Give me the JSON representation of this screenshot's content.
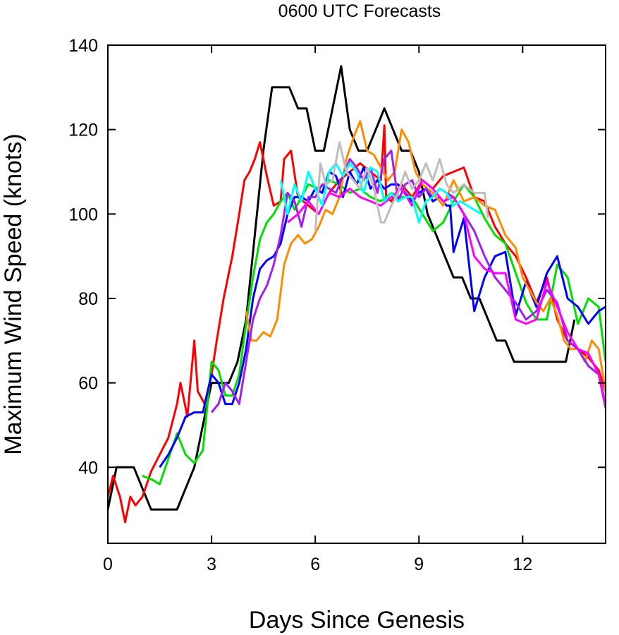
{
  "chart_data": {
    "type": "line",
    "title": "0600 UTC Forecasts",
    "xlabel": "Days Since Genesis",
    "ylabel": "Maximum Wind Speed (knots)",
    "xlim": [
      0,
      14.4
    ],
    "ylim": [
      22,
      140
    ],
    "x_ticks": [
      0,
      3,
      6,
      9,
      12
    ],
    "y_ticks": [
      40,
      60,
      80,
      100,
      120,
      140
    ],
    "grid": false,
    "series": [
      {
        "color": "#000000",
        "x": [
          0,
          0.25,
          0.5,
          0.75,
          1.0,
          1.25,
          1.5,
          1.75,
          2.0,
          2.25,
          2.5,
          2.75,
          3.0,
          3.25,
          3.5,
          3.75,
          4.0,
          4.25,
          4.5,
          4.75,
          5.0,
          5.25,
          5.5,
          5.75,
          6.0,
          6.25,
          6.5,
          6.75,
          7.0,
          7.25,
          7.5,
          7.75,
          8.0,
          8.25,
          8.5,
          8.75,
          9.0,
          9.25,
          9.5,
          9.75,
          10.0,
          10.25,
          10.5,
          10.75,
          11.0,
          11.25,
          11.5,
          11.75,
          12.0,
          12.25,
          12.5,
          12.75,
          13.0,
          13.25,
          13.5
        ],
        "y": [
          30,
          40,
          40,
          40,
          35,
          30,
          30,
          30,
          30,
          35,
          40,
          50,
          60,
          60,
          60,
          65,
          75,
          95,
          115,
          130,
          130,
          130,
          125,
          125,
          115,
          115,
          125,
          135,
          120,
          115,
          115,
          120,
          125,
          120,
          115,
          115,
          110,
          100,
          95,
          90,
          85,
          85,
          80,
          80,
          75,
          70,
          70,
          65,
          65,
          65,
          65,
          65,
          65,
          65,
          75
        ]
      },
      {
        "color": "#ff0000",
        "x": [
          0,
          0.15,
          0.35,
          0.5,
          0.65,
          0.8,
          1.0,
          1.25,
          1.5,
          1.75,
          2.0,
          2.1,
          2.3,
          2.5,
          2.6,
          2.8,
          3.0,
          3.15,
          3.35,
          3.6,
          3.8,
          3.95,
          4.1,
          4.25,
          4.4,
          4.6,
          4.8,
          5.0,
          5.1,
          5.3,
          5.5,
          5.8,
          6.1,
          6.4,
          6.7,
          7.0,
          7.3,
          7.6,
          7.9,
          8.0,
          8.05,
          8.2,
          8.5,
          8.8,
          9.1,
          9.4,
          9.7,
          10.0,
          10.3,
          10.6,
          10.9,
          11.2,
          11.5,
          11.8,
          12.1,
          12.4,
          12.7,
          13.0,
          13.3,
          13.6,
          13.9,
          14.2,
          14.4
        ],
        "y": [
          33,
          38,
          33,
          27,
          33,
          31,
          33,
          39,
          43,
          47,
          55,
          60,
          52,
          70,
          58,
          55,
          62,
          70,
          80,
          90,
          100,
          108,
          110,
          113,
          117,
          109,
          102,
          103,
          113,
          115,
          104,
          102,
          100,
          105,
          108,
          110,
          112,
          110,
          108,
          121,
          104,
          103,
          107,
          104,
          108,
          106,
          109,
          110,
          111,
          104,
          103,
          97,
          93,
          90,
          85,
          79,
          85,
          75,
          70,
          68,
          66,
          63,
          58
        ]
      },
      {
        "color": "#00e000",
        "x": [
          1.0,
          1.3,
          1.5,
          1.75,
          2.0,
          2.25,
          2.5,
          2.75,
          3.0,
          3.2,
          3.4,
          3.6,
          3.8,
          4.0,
          4.2,
          4.4,
          4.6,
          4.8,
          5.0,
          5.2,
          5.4,
          5.6,
          5.8,
          6.1,
          6.4,
          6.7,
          7.0,
          7.3,
          7.6,
          7.9,
          8.2,
          8.5,
          8.8,
          9.1,
          9.4,
          9.7,
          10.0,
          10.3,
          10.6,
          10.9,
          11.2,
          11.5,
          11.8,
          12.1,
          12.4,
          12.7,
          13.0,
          13.3,
          13.6,
          13.9,
          14.2,
          14.4
        ],
        "y": [
          38,
          37,
          36,
          42,
          48,
          43,
          41,
          44,
          65,
          63,
          57,
          57,
          62,
          74,
          85,
          94,
          98,
          100,
          103,
          105,
          101,
          104,
          107,
          106,
          108,
          107,
          105,
          106,
          104,
          103,
          105,
          104,
          104,
          100,
          96,
          98,
          103,
          107,
          104,
          99,
          95,
          93,
          86,
          79,
          75,
          75,
          88,
          85,
          74,
          80,
          78,
          65
        ]
      },
      {
        "color": "#0000ff",
        "x": [
          1.5,
          1.75,
          2.0,
          2.25,
          2.5,
          2.75,
          3.0,
          3.2,
          3.4,
          3.6,
          3.8,
          4.0,
          4.2,
          4.4,
          4.6,
          4.8,
          5.0,
          5.2,
          5.4,
          5.6,
          5.8,
          6.0,
          6.2,
          6.4,
          6.6,
          6.8,
          7.0,
          7.2,
          7.4,
          7.6,
          7.8,
          8.0,
          8.2,
          8.4,
          8.6,
          8.8,
          9.0,
          9.2,
          9.4,
          9.6,
          9.8,
          9.9,
          10.0,
          10.3,
          10.6,
          10.9,
          11.2,
          11.5,
          11.8,
          12.1,
          12.4,
          12.7,
          13.0,
          13.3,
          13.6,
          13.9,
          14.2,
          14.4
        ],
        "y": [
          40,
          43,
          47,
          52,
          53,
          53,
          62,
          60,
          55,
          55,
          60,
          68,
          80,
          87,
          89,
          90,
          93,
          100,
          104,
          104,
          103,
          106,
          105,
          110,
          109,
          104,
          110,
          107,
          111,
          106,
          108,
          106,
          107,
          107,
          105,
          103,
          105,
          106,
          103,
          104,
          102,
          102,
          91,
          99,
          77,
          85,
          90,
          91,
          76,
          84,
          78,
          86,
          90,
          80,
          78,
          74,
          77,
          78
        ]
      },
      {
        "color": "#ff8c00",
        "x": [
          4.0,
          4.15,
          4.3,
          4.5,
          4.7,
          4.9,
          5.1,
          5.3,
          5.5,
          5.7,
          5.9,
          6.1,
          6.3,
          6.5,
          6.7,
          6.9,
          7.1,
          7.3,
          7.5,
          7.7,
          7.9,
          8.1,
          8.3,
          8.5,
          8.7,
          8.9,
          9.1,
          9.4,
          9.7,
          10.0,
          10.3,
          10.6,
          10.9,
          11.2,
          11.5,
          11.8,
          12.0,
          12.2,
          12.4,
          12.6,
          12.8,
          13.0,
          13.2,
          13.4,
          13.6,
          13.8,
          14.0,
          14.2,
          14.4
        ],
        "y": [
          77,
          70,
          70,
          72,
          71,
          75,
          88,
          93,
          95,
          93,
          94,
          97,
          101,
          100,
          104,
          113,
          118,
          122,
          115,
          114,
          111,
          108,
          110,
          120,
          117,
          110,
          107,
          105,
          102,
          108,
          103,
          104,
          102,
          101,
          95,
          92,
          85,
          82,
          79,
          77,
          80,
          76,
          70,
          68,
          68,
          65,
          70,
          68,
          58
        ]
      },
      {
        "color": "#a020f0",
        "x": [
          3.0,
          3.2,
          3.4,
          3.6,
          3.8,
          4.0,
          4.2,
          4.4,
          4.6,
          4.8,
          5.0,
          5.2,
          5.4,
          5.6,
          5.8,
          6.0,
          6.2,
          6.4,
          6.6,
          6.8,
          7.0,
          7.2,
          7.4,
          7.6,
          7.8,
          8.0,
          8.2,
          8.4,
          8.6,
          8.8,
          9.0,
          9.2,
          9.4,
          9.6,
          9.8,
          10.0,
          10.3,
          10.6,
          10.9,
          11.2,
          11.5,
          11.8,
          12.1,
          12.4,
          12.7,
          13.0,
          13.3,
          13.6,
          13.9,
          14.2,
          14.4
        ],
        "y": [
          53,
          55,
          60,
          58,
          55,
          65,
          75,
          80,
          83,
          88,
          95,
          105,
          103,
          97,
          104,
          104,
          107,
          106,
          105,
          109,
          113,
          111,
          108,
          111,
          105,
          113,
          115,
          103,
          107,
          108,
          104,
          106,
          104,
          106,
          105,
          104,
          100,
          96,
          90,
          85,
          82,
          79,
          75,
          77,
          82,
          79,
          70,
          68,
          64,
          62,
          54
        ]
      },
      {
        "color": "#ff00ff",
        "x": [
          5.2,
          5.5,
          5.8,
          6.1,
          6.4,
          6.7,
          7.0,
          7.3,
          7.6,
          7.9,
          8.2,
          8.5,
          8.8,
          9.1,
          9.4,
          9.7,
          10.0,
          10.3,
          10.6,
          10.9,
          11.2,
          11.5,
          11.8,
          12.1,
          12.4,
          12.7,
          13.0,
          13.3,
          13.6,
          13.9,
          14.2,
          14.4
        ],
        "y": [
          98,
          100,
          103,
          100,
          105,
          104,
          106,
          104,
          103,
          102,
          104,
          106,
          102,
          108,
          106,
          103,
          104,
          100,
          90,
          87,
          86,
          86,
          75,
          74,
          75,
          84,
          78,
          72,
          68,
          67,
          62,
          55
        ]
      },
      {
        "color": "#00ffff",
        "x": [
          5.0,
          5.2,
          5.4,
          5.6,
          5.8,
          6.0,
          6.2,
          6.4,
          6.6,
          6.8,
          7.0,
          7.2,
          7.4,
          7.6,
          7.8,
          8.0,
          8.2,
          8.4,
          8.6,
          8.8,
          9.0,
          9.2,
          9.4,
          9.6,
          9.8,
          10.0,
          10.2,
          10.4,
          10.6,
          10.8
        ],
        "y": [
          108,
          100,
          107,
          103,
          110,
          106,
          102,
          110,
          112,
          109,
          112,
          110,
          105,
          111,
          110,
          103,
          105,
          103,
          104,
          104,
          98,
          103,
          104,
          106,
          105,
          102,
          103,
          102,
          101,
          100
        ]
      },
      {
        "color": "#bebebe",
        "x": [
          6.0,
          6.15,
          6.3,
          6.5,
          6.7,
          6.9,
          7.1,
          7.3,
          7.5,
          7.7,
          7.9,
          8.0,
          8.2,
          8.4,
          8.6,
          8.8,
          9.0,
          9.2,
          9.4,
          9.6,
          9.8,
          10.0,
          10.3,
          10.6,
          10.9,
          11.0
        ],
        "y": [
          96,
          112,
          107,
          108,
          117,
          110,
          108,
          106,
          111,
          106,
          98,
          98,
          102,
          105,
          110,
          106,
          108,
          112,
          108,
          113,
          107,
          105,
          107,
          105,
          105,
          99
        ]
      }
    ]
  }
}
